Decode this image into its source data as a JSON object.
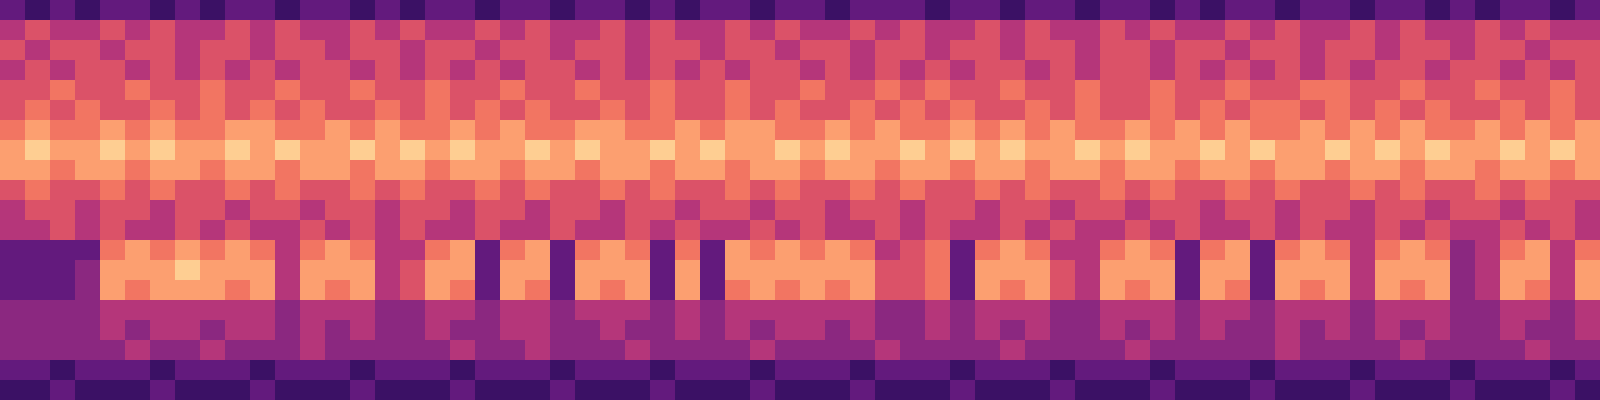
{
  "chart_data": {
    "type": "heatmap",
    "color": "magma",
    "tick_labels": false,
    "zlim": [
      0,
      10
    ],
    "z": [
      [
        3,
        2,
        3,
        2,
        3,
        3,
        2,
        3,
        2,
        3,
        3,
        2,
        3,
        3,
        2,
        3,
        2,
        3,
        3,
        2,
        3,
        3,
        2,
        3,
        3,
        2,
        3,
        2,
        3,
        3,
        2,
        3,
        3,
        2,
        3,
        3,
        3,
        2,
        3,
        3,
        2,
        3,
        3,
        2,
        3,
        3,
        2,
        3,
        2,
        3,
        3,
        2,
        3,
        3,
        2,
        3,
        3,
        2,
        3,
        2,
        3,
        3,
        2,
        3
      ],
      [
        5,
        6,
        5,
        5,
        6,
        5,
        6,
        5,
        5,
        6,
        5,
        6,
        5,
        5,
        6,
        5,
        6,
        5,
        5,
        6,
        5,
        6,
        5,
        5,
        6,
        5,
        6,
        5,
        5,
        6,
        5,
        6,
        5,
        5,
        6,
        5,
        6,
        5,
        5,
        6,
        5,
        6,
        5,
        5,
        6,
        5,
        6,
        5,
        5,
        6,
        5,
        6,
        5,
        5,
        6,
        5,
        6,
        5,
        5,
        6,
        5,
        6,
        5,
        5
      ],
      [
        6,
        5,
        6,
        6,
        5,
        6,
        6,
        5,
        6,
        6,
        5,
        6,
        6,
        5,
        6,
        6,
        5,
        6,
        6,
        5,
        6,
        6,
        5,
        6,
        6,
        5,
        6,
        6,
        5,
        6,
        6,
        5,
        6,
        6,
        5,
        6,
        6,
        5,
        6,
        6,
        5,
        6,
        6,
        5,
        6,
        6,
        5,
        6,
        6,
        5,
        6,
        6,
        5,
        6,
        6,
        5,
        6,
        6,
        5,
        6,
        6,
        5,
        6,
        6
      ],
      [
        5,
        6,
        5,
        6,
        6,
        5,
        6,
        5,
        6,
        5,
        6,
        5,
        6,
        6,
        5,
        6,
        5,
        6,
        5,
        6,
        5,
        6,
        6,
        5,
        6,
        5,
        6,
        5,
        6,
        5,
        6,
        6,
        5,
        6,
        5,
        6,
        5,
        6,
        5,
        6,
        6,
        5,
        6,
        5,
        6,
        6,
        5,
        6,
        5,
        6,
        5,
        6,
        5,
        6,
        5,
        6,
        6,
        5,
        6,
        6,
        5,
        6,
        5,
        6
      ],
      [
        6,
        6,
        7,
        6,
        6,
        7,
        6,
        6,
        7,
        6,
        6,
        7,
        6,
        6,
        7,
        6,
        6,
        7,
        6,
        6,
        7,
        6,
        6,
        7,
        6,
        6,
        7,
        6,
        6,
        7,
        6,
        6,
        7,
        6,
        6,
        7,
        6,
        7,
        6,
        6,
        7,
        6,
        6,
        7,
        6,
        6,
        7,
        6,
        6,
        7,
        6,
        6,
        7,
        7,
        6,
        6,
        7,
        6,
        6,
        7,
        6,
        6,
        7,
        6
      ],
      [
        6,
        7,
        6,
        7,
        6,
        6,
        7,
        6,
        7,
        6,
        7,
        6,
        7,
        6,
        6,
        7,
        6,
        7,
        6,
        7,
        6,
        7,
        6,
        6,
        7,
        6,
        7,
        6,
        6,
        7,
        6,
        7,
        6,
        6,
        7,
        6,
        7,
        6,
        7,
        6,
        6,
        7,
        6,
        7,
        6,
        6,
        7,
        6,
        7,
        6,
        7,
        7,
        6,
        7,
        6,
        7,
        6,
        7,
        6,
        6,
        7,
        6,
        7,
        6
      ],
      [
        7,
        8,
        7,
        7,
        8,
        7,
        8,
        7,
        7,
        8,
        8,
        7,
        7,
        8,
        7,
        8,
        7,
        7,
        8,
        7,
        8,
        7,
        7,
        8,
        8,
        7,
        7,
        8,
        7,
        8,
        8,
        7,
        7,
        8,
        7,
        8,
        7,
        7,
        8,
        7,
        8,
        7,
        8,
        7,
        7,
        8,
        7,
        8,
        7,
        8,
        7,
        7,
        8,
        7,
        8,
        7,
        8,
        7,
        7,
        8,
        7,
        8,
        7,
        8
      ],
      [
        8,
        9,
        8,
        8,
        9,
        8,
        9,
        8,
        8,
        9,
        8,
        9,
        8,
        8,
        9,
        8,
        9,
        8,
        9,
        8,
        8,
        9,
        8,
        9,
        8,
        8,
        9,
        8,
        9,
        8,
        8,
        9,
        8,
        9,
        8,
        8,
        9,
        8,
        9,
        8,
        9,
        8,
        8,
        9,
        8,
        9,
        8,
        8,
        9,
        8,
        9,
        8,
        8,
        9,
        8,
        9,
        8,
        9,
        8,
        8,
        9,
        8,
        9,
        8
      ],
      [
        8,
        8,
        7,
        8,
        8,
        7,
        8,
        8,
        7,
        8,
        8,
        7,
        8,
        8,
        7,
        8,
        8,
        7,
        8,
        8,
        7,
        8,
        8,
        7,
        8,
        8,
        7,
        8,
        8,
        7,
        8,
        8,
        7,
        8,
        8,
        7,
        8,
        8,
        7,
        8,
        8,
        7,
        8,
        8,
        7,
        8,
        8,
        7,
        8,
        8,
        7,
        8,
        8,
        7,
        8,
        8,
        7,
        8,
        8,
        7,
        8,
        8,
        7,
        8
      ],
      [
        6,
        7,
        6,
        6,
        7,
        6,
        7,
        6,
        6,
        7,
        6,
        7,
        6,
        6,
        7,
        6,
        7,
        6,
        6,
        7,
        6,
        7,
        6,
        6,
        7,
        6,
        7,
        6,
        6,
        7,
        6,
        7,
        6,
        6,
        7,
        6,
        7,
        6,
        6,
        7,
        6,
        7,
        6,
        6,
        7,
        6,
        7,
        6,
        6,
        7,
        6,
        7,
        6,
        6,
        7,
        6,
        7,
        6,
        6,
        7,
        6,
        7,
        6,
        6
      ],
      [
        5,
        6,
        6,
        5,
        6,
        6,
        5,
        6,
        6,
        5,
        6,
        6,
        5,
        6,
        6,
        5,
        6,
        6,
        5,
        6,
        6,
        5,
        6,
        6,
        5,
        6,
        6,
        5,
        6,
        6,
        5,
        6,
        6,
        5,
        6,
        6,
        5,
        6,
        6,
        5,
        6,
        6,
        5,
        6,
        6,
        5,
        6,
        6,
        5,
        6,
        6,
        5,
        6,
        6,
        5,
        6,
        6,
        5,
        6,
        6,
        5,
        6,
        6,
        5
      ],
      [
        5,
        5,
        6,
        5,
        6,
        5,
        5,
        6,
        5,
        6,
        5,
        5,
        6,
        5,
        6,
        5,
        6,
        5,
        5,
        6,
        5,
        5,
        6,
        5,
        5,
        6,
        5,
        6,
        5,
        5,
        6,
        5,
        6,
        5,
        5,
        6,
        5,
        6,
        5,
        5,
        6,
        5,
        6,
        5,
        5,
        6,
        5,
        6,
        5,
        5,
        6,
        5,
        6,
        5,
        5,
        6,
        5,
        6,
        5,
        5,
        6,
        5,
        6,
        5
      ],
      [
        3,
        3,
        3,
        3,
        7,
        8,
        7,
        8,
        7,
        8,
        7,
        5,
        7,
        8,
        7,
        5,
        5,
        7,
        8,
        3,
        7,
        8,
        3,
        7,
        8,
        7,
        3,
        7,
        3,
        8,
        7,
        8,
        7,
        8,
        7,
        5,
        6,
        7,
        3,
        7,
        8,
        7,
        5,
        5,
        7,
        8,
        7,
        3,
        7,
        8,
        3,
        7,
        8,
        7,
        5,
        7,
        8,
        7,
        4,
        5,
        7,
        8,
        5,
        7
      ],
      [
        3,
        3,
        3,
        4,
        8,
        8,
        8,
        9,
        8,
        8,
        8,
        5,
        8,
        8,
        8,
        5,
        6,
        8,
        8,
        3,
        8,
        8,
        3,
        8,
        8,
        8,
        3,
        8,
        3,
        8,
        8,
        8,
        8,
        8,
        8,
        6,
        6,
        7,
        3,
        8,
        8,
        8,
        6,
        5,
        8,
        8,
        8,
        3,
        8,
        8,
        3,
        8,
        8,
        8,
        5,
        8,
        8,
        8,
        4,
        5,
        8,
        8,
        5,
        8
      ],
      [
        3,
        3,
        3,
        4,
        8,
        7,
        8,
        8,
        8,
        7,
        8,
        5,
        8,
        7,
        8,
        5,
        6,
        8,
        7,
        3,
        8,
        7,
        3,
        8,
        7,
        8,
        3,
        8,
        3,
        7,
        8,
        7,
        8,
        7,
        8,
        6,
        6,
        7,
        3,
        8,
        7,
        8,
        6,
        5,
        8,
        7,
        8,
        3,
        8,
        7,
        3,
        8,
        7,
        8,
        5,
        8,
        7,
        8,
        4,
        5,
        8,
        7,
        5,
        8
      ],
      [
        4,
        4,
        4,
        4,
        5,
        5,
        5,
        5,
        5,
        5,
        5,
        4,
        5,
        5,
        5,
        4,
        4,
        5,
        5,
        4,
        5,
        5,
        4,
        5,
        5,
        5,
        4,
        5,
        4,
        5,
        5,
        5,
        5,
        5,
        5,
        4,
        4,
        5,
        4,
        5,
        5,
        5,
        4,
        4,
        5,
        5,
        5,
        4,
        5,
        5,
        4,
        5,
        5,
        5,
        4,
        5,
        5,
        5,
        4,
        4,
        5,
        5,
        4,
        5
      ],
      [
        4,
        4,
        4,
        4,
        5,
        4,
        5,
        5,
        4,
        5,
        5,
        4,
        5,
        4,
        5,
        4,
        4,
        5,
        4,
        4,
        5,
        5,
        4,
        4,
        5,
        4,
        4,
        5,
        4,
        5,
        4,
        5,
        5,
        4,
        5,
        4,
        4,
        5,
        4,
        5,
        4,
        5,
        4,
        4,
        5,
        4,
        5,
        4,
        5,
        4,
        4,
        5,
        4,
        5,
        4,
        5,
        4,
        5,
        4,
        4,
        5,
        4,
        4,
        5
      ],
      [
        4,
        4,
        4,
        4,
        4,
        5,
        4,
        4,
        5,
        4,
        4,
        4,
        5,
        4,
        4,
        4,
        4,
        4,
        5,
        4,
        4,
        5,
        4,
        4,
        4,
        5,
        4,
        4,
        4,
        4,
        5,
        4,
        4,
        4,
        4,
        5,
        4,
        4,
        4,
        4,
        5,
        4,
        4,
        4,
        4,
        5,
        4,
        4,
        4,
        4,
        4,
        5,
        4,
        4,
        4,
        4,
        5,
        4,
        4,
        4,
        4,
        5,
        4,
        4
      ],
      [
        3,
        3,
        2,
        3,
        3,
        3,
        2,
        3,
        3,
        3,
        2,
        3,
        3,
        3,
        2,
        3,
        3,
        3,
        2,
        3,
        3,
        3,
        2,
        3,
        3,
        3,
        2,
        3,
        3,
        3,
        2,
        3,
        3,
        3,
        2,
        3,
        3,
        3,
        2,
        3,
        3,
        3,
        2,
        3,
        3,
        3,
        2,
        3,
        3,
        3,
        2,
        3,
        3,
        3,
        2,
        3,
        3,
        3,
        2,
        3,
        3,
        3,
        2,
        3
      ],
      [
        2,
        2,
        3,
        2,
        2,
        2,
        3,
        2,
        2,
        2,
        3,
        2,
        2,
        2,
        3,
        2,
        2,
        2,
        3,
        2,
        2,
        2,
        3,
        2,
        2,
        2,
        3,
        2,
        2,
        2,
        3,
        2,
        2,
        2,
        3,
        2,
        2,
        2,
        3,
        2,
        2,
        2,
        3,
        2,
        2,
        2,
        3,
        2,
        2,
        2,
        3,
        2,
        2,
        2,
        3,
        2,
        2,
        2,
        3,
        2,
        2,
        2,
        3,
        2
      ]
    ]
  }
}
